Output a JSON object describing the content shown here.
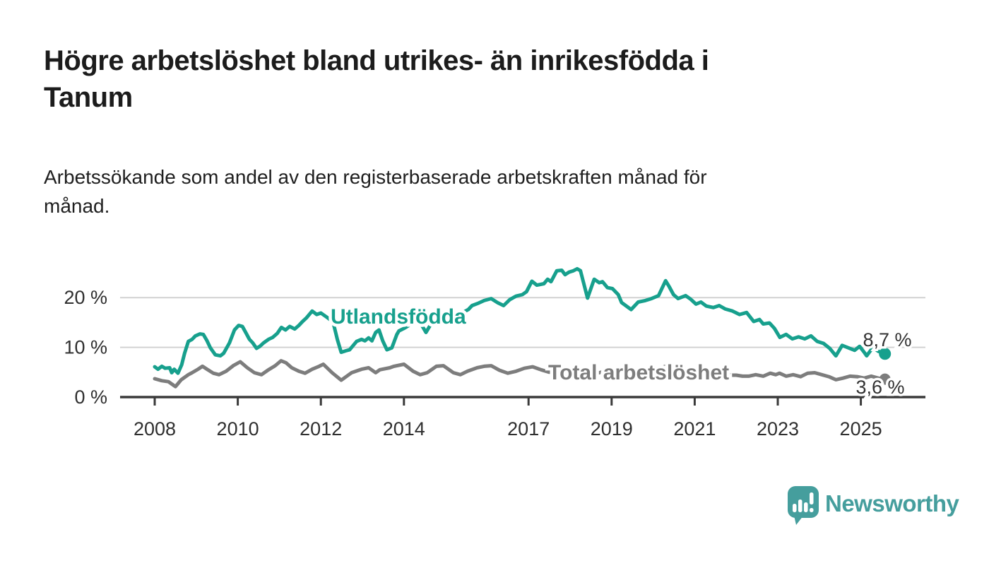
{
  "header": {
    "title_lines": [
      "Högre arbetslöshet bland utrikes- än inrikesfödda i",
      "Tanum"
    ],
    "subtitle_lines": [
      "Arbetssökande som andel av den registerbaserade arbetskraften månad för",
      "månad."
    ]
  },
  "chart_data": {
    "type": "line",
    "title": "Högre arbetslöshet bland utrikes- än inrikesfödda i Tanum",
    "subtitle": "Arbetssökande som andel av den registerbaserade arbetskraften månad för månad.",
    "unit": "%",
    "x_axis": {
      "range": [
        2007.2,
        2026.5
      ],
      "ticks": [
        2008,
        2010,
        2012,
        2014,
        2017,
        2019,
        2021,
        2023,
        2025
      ]
    },
    "y_axis": {
      "range": [
        0,
        27
      ],
      "ticks": [
        {
          "value": 0,
          "label": "0 %"
        },
        {
          "value": 10,
          "label": "10 %"
        },
        {
          "value": 20,
          "label": "20 %"
        }
      ],
      "grid": true
    },
    "colors": {
      "grid": "#d2d2d2",
      "axis": "#3a3a3a",
      "tick_text": "#2f2f2f",
      "value_text": "#333333"
    },
    "series": [
      {
        "name": "Utlandsfödda",
        "color": "#17a08d",
        "end_label": "8,7 %",
        "end_value": 8.7,
        "points": [
          [
            2008.0,
            6.1
          ],
          [
            2008.08,
            5.6
          ],
          [
            2008.17,
            6.2
          ],
          [
            2008.25,
            5.8
          ],
          [
            2008.36,
            5.9
          ],
          [
            2008.41,
            4.9
          ],
          [
            2008.47,
            5.6
          ],
          [
            2008.56,
            4.8
          ],
          [
            2008.65,
            6.5
          ],
          [
            2008.72,
            8.8
          ],
          [
            2008.81,
            11.2
          ],
          [
            2008.9,
            11.6
          ],
          [
            2008.98,
            12.3
          ],
          [
            2009.09,
            12.7
          ],
          [
            2009.17,
            12.6
          ],
          [
            2009.26,
            11.3
          ],
          [
            2009.34,
            9.9
          ],
          [
            2009.46,
            8.5
          ],
          [
            2009.58,
            8.3
          ],
          [
            2009.66,
            8.8
          ],
          [
            2009.8,
            10.9
          ],
          [
            2009.92,
            13.5
          ],
          [
            2010.02,
            14.4
          ],
          [
            2010.11,
            14.2
          ],
          [
            2010.19,
            13.0
          ],
          [
            2010.28,
            11.6
          ],
          [
            2010.36,
            10.9
          ],
          [
            2010.45,
            9.8
          ],
          [
            2010.53,
            10.2
          ],
          [
            2010.62,
            10.9
          ],
          [
            2010.74,
            11.6
          ],
          [
            2010.84,
            12.0
          ],
          [
            2010.95,
            12.8
          ],
          [
            2011.05,
            14.0
          ],
          [
            2011.15,
            13.5
          ],
          [
            2011.25,
            14.2
          ],
          [
            2011.37,
            13.7
          ],
          [
            2011.47,
            14.4
          ],
          [
            2011.56,
            15.2
          ],
          [
            2011.65,
            15.9
          ],
          [
            2011.79,
            17.3
          ],
          [
            2011.9,
            16.6
          ],
          [
            2012.0,
            16.9
          ],
          [
            2012.12,
            16.2
          ],
          [
            2012.22,
            15.6
          ],
          [
            2012.3,
            14.9
          ],
          [
            2012.4,
            11.5
          ],
          [
            2012.49,
            9.0
          ],
          [
            2012.6,
            9.3
          ],
          [
            2012.69,
            9.5
          ],
          [
            2012.86,
            11.2
          ],
          [
            2012.98,
            11.6
          ],
          [
            2013.06,
            11.3
          ],
          [
            2013.15,
            11.9
          ],
          [
            2013.23,
            11.3
          ],
          [
            2013.32,
            13.0
          ],
          [
            2013.4,
            13.5
          ],
          [
            2013.49,
            11.3
          ],
          [
            2013.59,
            9.5
          ],
          [
            2013.71,
            9.9
          ],
          [
            2013.83,
            12.6
          ],
          [
            2013.88,
            13.3
          ],
          [
            2014.0,
            13.8
          ],
          [
            2014.12,
            14.4
          ],
          [
            2014.24,
            15.0
          ],
          [
            2014.36,
            15.4
          ],
          [
            2014.53,
            13.0
          ],
          [
            2014.68,
            15.1
          ],
          [
            2014.8,
            14.8
          ],
          [
            2014.95,
            15.2
          ],
          [
            2015.1,
            15.0
          ],
          [
            2015.3,
            15.4
          ],
          [
            2015.42,
            17.0
          ],
          [
            2015.55,
            17.6
          ],
          [
            2015.64,
            18.4
          ],
          [
            2015.8,
            18.9
          ],
          [
            2015.93,
            19.4
          ],
          [
            2016.1,
            19.8
          ],
          [
            2016.25,
            19.0
          ],
          [
            2016.4,
            18.4
          ],
          [
            2016.55,
            19.6
          ],
          [
            2016.7,
            20.3
          ],
          [
            2016.85,
            20.6
          ],
          [
            2016.95,
            21.2
          ],
          [
            2017.08,
            23.3
          ],
          [
            2017.2,
            22.5
          ],
          [
            2017.37,
            22.8
          ],
          [
            2017.46,
            23.7
          ],
          [
            2017.54,
            23.2
          ],
          [
            2017.68,
            25.4
          ],
          [
            2017.8,
            25.5
          ],
          [
            2017.88,
            24.6
          ],
          [
            2017.97,
            25.1
          ],
          [
            2018.08,
            25.4
          ],
          [
            2018.17,
            25.8
          ],
          [
            2018.25,
            25.4
          ],
          [
            2018.42,
            19.9
          ],
          [
            2018.58,
            23.7
          ],
          [
            2018.7,
            23.0
          ],
          [
            2018.78,
            23.2
          ],
          [
            2018.9,
            22.0
          ],
          [
            2019.02,
            21.8
          ],
          [
            2019.16,
            20.6
          ],
          [
            2019.24,
            19.0
          ],
          [
            2019.47,
            17.6
          ],
          [
            2019.64,
            19.1
          ],
          [
            2019.81,
            19.4
          ],
          [
            2019.96,
            19.8
          ],
          [
            2020.13,
            20.4
          ],
          [
            2020.3,
            23.4
          ],
          [
            2020.38,
            22.3
          ],
          [
            2020.49,
            20.6
          ],
          [
            2020.6,
            19.8
          ],
          [
            2020.78,
            20.4
          ],
          [
            2020.9,
            19.7
          ],
          [
            2021.03,
            18.7
          ],
          [
            2021.15,
            19.1
          ],
          [
            2021.28,
            18.3
          ],
          [
            2021.45,
            18.0
          ],
          [
            2021.59,
            18.4
          ],
          [
            2021.74,
            17.7
          ],
          [
            2021.91,
            17.3
          ],
          [
            2022.08,
            16.6
          ],
          [
            2022.25,
            17.0
          ],
          [
            2022.42,
            15.2
          ],
          [
            2022.56,
            15.6
          ],
          [
            2022.65,
            14.7
          ],
          [
            2022.8,
            14.9
          ],
          [
            2022.92,
            13.8
          ],
          [
            2023.05,
            12.0
          ],
          [
            2023.2,
            12.6
          ],
          [
            2023.35,
            11.7
          ],
          [
            2023.5,
            12.1
          ],
          [
            2023.65,
            11.7
          ],
          [
            2023.8,
            12.3
          ],
          [
            2023.95,
            11.2
          ],
          [
            2024.1,
            10.8
          ],
          [
            2024.25,
            9.8
          ],
          [
            2024.4,
            8.3
          ],
          [
            2024.55,
            10.4
          ],
          [
            2024.7,
            9.9
          ],
          [
            2024.85,
            9.4
          ],
          [
            2024.97,
            10.2
          ],
          [
            2025.08,
            9.0
          ],
          [
            2025.14,
            8.3
          ],
          [
            2025.29,
            10.0
          ],
          [
            2025.42,
            9.2
          ],
          [
            2025.58,
            8.7
          ]
        ]
      },
      {
        "name": "Total arbetslöshet",
        "color": "#7d7d7d",
        "end_label": "3,6 %",
        "end_value": 3.6,
        "points": [
          [
            2008.0,
            3.7
          ],
          [
            2008.17,
            3.3
          ],
          [
            2008.33,
            3.1
          ],
          [
            2008.5,
            2.1
          ],
          [
            2008.64,
            3.5
          ],
          [
            2008.81,
            4.5
          ],
          [
            2008.9,
            4.9
          ],
          [
            2009.04,
            5.6
          ],
          [
            2009.15,
            6.2
          ],
          [
            2009.26,
            5.6
          ],
          [
            2009.41,
            4.8
          ],
          [
            2009.55,
            4.5
          ],
          [
            2009.72,
            5.2
          ],
          [
            2009.89,
            6.3
          ],
          [
            2010.06,
            7.1
          ],
          [
            2010.23,
            5.9
          ],
          [
            2010.4,
            4.9
          ],
          [
            2010.57,
            4.5
          ],
          [
            2010.74,
            5.5
          ],
          [
            2010.9,
            6.3
          ],
          [
            2011.04,
            7.3
          ],
          [
            2011.16,
            6.9
          ],
          [
            2011.3,
            5.9
          ],
          [
            2011.47,
            5.2
          ],
          [
            2011.62,
            4.8
          ],
          [
            2011.79,
            5.6
          ],
          [
            2011.96,
            6.2
          ],
          [
            2012.06,
            6.6
          ],
          [
            2012.27,
            4.9
          ],
          [
            2012.49,
            3.4
          ],
          [
            2012.74,
            4.9
          ],
          [
            2012.98,
            5.6
          ],
          [
            2013.15,
            5.9
          ],
          [
            2013.32,
            4.9
          ],
          [
            2013.42,
            5.5
          ],
          [
            2013.66,
            5.9
          ],
          [
            2013.76,
            6.2
          ],
          [
            2014.0,
            6.6
          ],
          [
            2014.22,
            5.2
          ],
          [
            2014.39,
            4.5
          ],
          [
            2014.56,
            4.9
          ],
          [
            2014.78,
            6.2
          ],
          [
            2014.95,
            6.3
          ],
          [
            2015.19,
            4.9
          ],
          [
            2015.36,
            4.5
          ],
          [
            2015.53,
            5.2
          ],
          [
            2015.76,
            5.9
          ],
          [
            2015.93,
            6.2
          ],
          [
            2016.1,
            6.3
          ],
          [
            2016.3,
            5.4
          ],
          [
            2016.5,
            4.8
          ],
          [
            2016.7,
            5.2
          ],
          [
            2016.9,
            5.8
          ],
          [
            2017.1,
            6.1
          ],
          [
            2017.3,
            5.5
          ],
          [
            2017.5,
            5.0
          ],
          [
            2017.7,
            5.2
          ],
          [
            2017.9,
            5.6
          ],
          [
            2018.1,
            5.8
          ],
          [
            2018.3,
            5.2
          ],
          [
            2018.5,
            4.7
          ],
          [
            2018.7,
            4.9
          ],
          [
            2018.9,
            5.3
          ],
          [
            2019.1,
            5.4
          ],
          [
            2019.3,
            4.9
          ],
          [
            2019.5,
            4.5
          ],
          [
            2019.7,
            4.7
          ],
          [
            2019.9,
            5.1
          ],
          [
            2020.1,
            5.6
          ],
          [
            2020.3,
            6.2
          ],
          [
            2020.45,
            6.3
          ],
          [
            2020.6,
            6.0
          ],
          [
            2020.8,
            5.7
          ],
          [
            2021.0,
            5.5
          ],
          [
            2021.2,
            5.1
          ],
          [
            2021.4,
            4.8
          ],
          [
            2021.6,
            4.5
          ],
          [
            2021.8,
            4.4
          ],
          [
            2022.0,
            4.4
          ],
          [
            2022.15,
            4.2
          ],
          [
            2022.3,
            4.2
          ],
          [
            2022.47,
            4.5
          ],
          [
            2022.65,
            4.2
          ],
          [
            2022.82,
            4.8
          ],
          [
            2022.95,
            4.5
          ],
          [
            2023.04,
            4.8
          ],
          [
            2023.2,
            4.2
          ],
          [
            2023.37,
            4.5
          ],
          [
            2023.55,
            4.1
          ],
          [
            2023.72,
            4.8
          ],
          [
            2023.89,
            4.9
          ],
          [
            2024.06,
            4.5
          ],
          [
            2024.23,
            4.1
          ],
          [
            2024.4,
            3.5
          ],
          [
            2024.57,
            3.8
          ],
          [
            2024.74,
            4.2
          ],
          [
            2024.91,
            4.1
          ],
          [
            2025.08,
            3.8
          ],
          [
            2025.25,
            4.2
          ],
          [
            2025.42,
            3.8
          ],
          [
            2025.58,
            3.6
          ]
        ]
      }
    ],
    "legend_position": "inline-labels"
  },
  "footer": {
    "brand": "Newsworthy",
    "logo_color": "#459e9d",
    "logo_icon": "newsworthy-speech-bubble-bar-chart-icon"
  }
}
